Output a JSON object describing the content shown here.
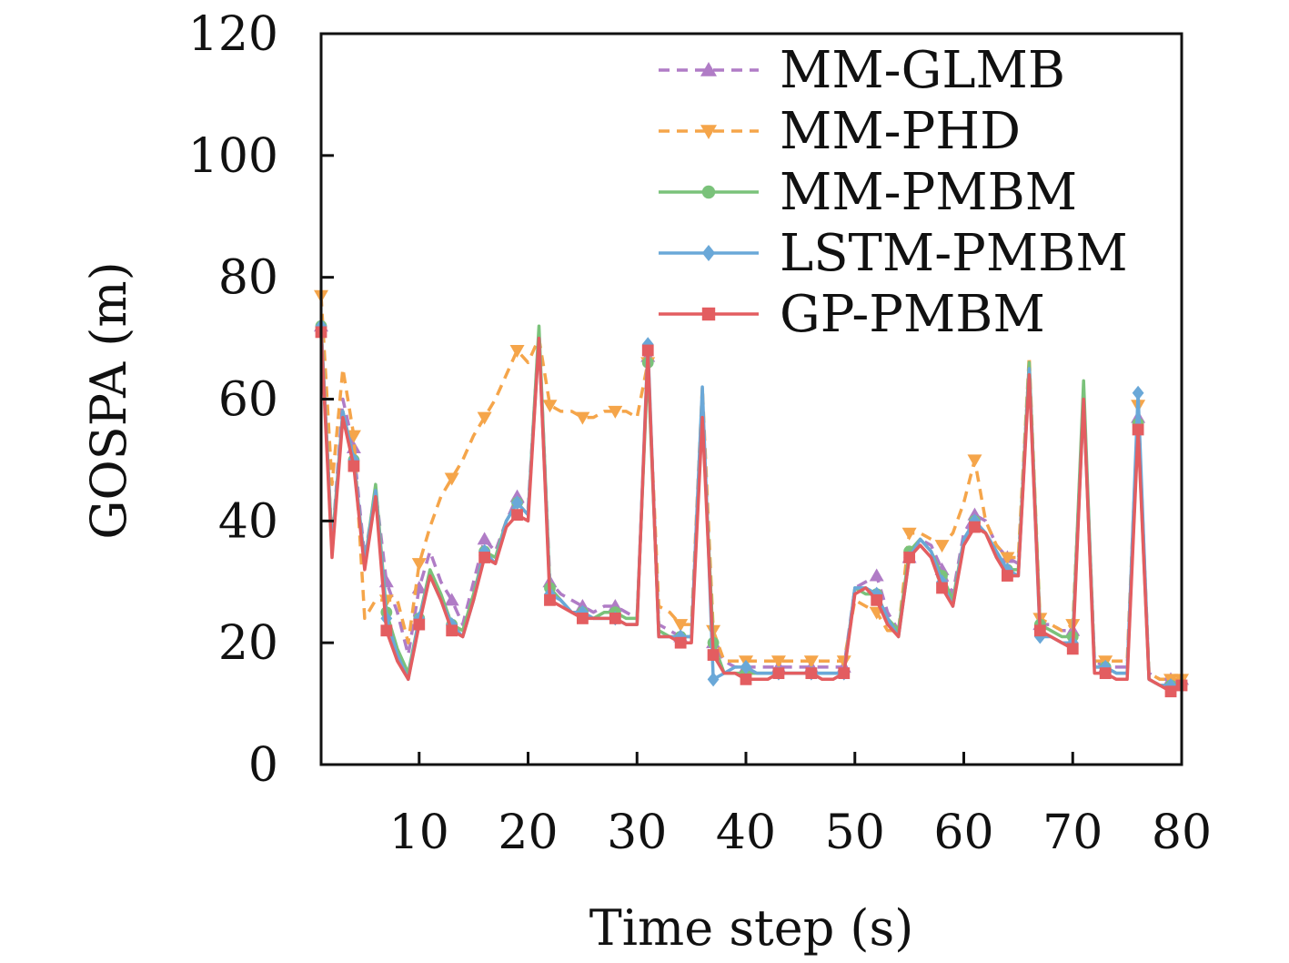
{
  "chart_data": {
    "type": "line",
    "title": "",
    "xlabel": "Time step (s)",
    "ylabel": "GOSPA (m)",
    "xlim": [
      1,
      80
    ],
    "ylim": [
      0,
      120
    ],
    "xticks": [
      10,
      20,
      30,
      40,
      50,
      60,
      70,
      80
    ],
    "yticks": [
      0,
      20,
      40,
      60,
      80,
      100,
      120
    ],
    "grid": false,
    "legend_position": "top-right",
    "x": [
      1,
      2,
      3,
      4,
      5,
      6,
      7,
      8,
      9,
      10,
      11,
      12,
      13,
      14,
      15,
      16,
      17,
      18,
      19,
      20,
      21,
      22,
      23,
      24,
      25,
      26,
      27,
      28,
      29,
      30,
      31,
      32,
      33,
      34,
      35,
      36,
      37,
      38,
      39,
      40,
      41,
      42,
      43,
      44,
      45,
      46,
      47,
      48,
      49,
      50,
      51,
      52,
      53,
      54,
      55,
      56,
      57,
      58,
      59,
      60,
      61,
      62,
      63,
      64,
      65,
      66,
      67,
      68,
      69,
      70,
      71,
      72,
      73,
      74,
      75,
      76,
      77,
      78,
      79,
      80
    ],
    "series": [
      {
        "name": "MM-GLMB",
        "color": "#b07cc6",
        "dash": "dashed",
        "marker": "triangle-up",
        "values": [
          72,
          36,
          60,
          52,
          34,
          45,
          30,
          25,
          18,
          29,
          35,
          30,
          27,
          23,
          30,
          37,
          35,
          40,
          44,
          42,
          71,
          30,
          28,
          27,
          26,
          25,
          26,
          26,
          25,
          24,
          67,
          23,
          22,
          21,
          21,
          60,
          20,
          17,
          16,
          16,
          16,
          16,
          16,
          16,
          16,
          16,
          16,
          16,
          16,
          29,
          30,
          31,
          25,
          22,
          34,
          37,
          36,
          32,
          28,
          38,
          41,
          40,
          36,
          34,
          33,
          66,
          23,
          23,
          22,
          22,
          61,
          17,
          16,
          16,
          16,
          57,
          15,
          14,
          14,
          14
        ]
      },
      {
        "name": "MM-PHD",
        "color": "#f5a54a",
        "dash": "dashed",
        "marker": "triangle-down",
        "values": [
          77,
          46,
          65,
          54,
          24,
          27,
          27,
          27,
          20,
          33,
          39,
          44,
          47,
          50,
          54,
          57,
          60,
          64,
          68,
          66,
          70,
          59,
          58,
          58,
          57,
          57,
          58,
          58,
          58,
          57,
          66,
          26,
          25,
          23,
          23,
          62,
          22,
          17,
          17,
          17,
          17,
          17,
          17,
          17,
          17,
          17,
          17,
          17,
          17,
          27,
          26,
          25,
          22,
          22,
          38,
          38,
          37,
          36,
          38,
          43,
          50,
          40,
          36,
          34,
          34,
          67,
          24,
          23,
          22,
          23,
          60,
          17,
          17,
          17,
          17,
          59,
          15,
          14,
          14,
          14
        ]
      },
      {
        "name": "MM-PMBM",
        "color": "#7ac27a",
        "dash": "solid",
        "marker": "circle",
        "values": [
          72,
          36,
          58,
          50,
          33,
          46,
          25,
          19,
          15,
          24,
          32,
          28,
          23,
          22,
          28,
          35,
          34,
          40,
          43,
          41,
          72,
          29,
          27,
          25,
          25,
          24,
          25,
          25,
          24,
          24,
          66,
          22,
          21,
          21,
          21,
          58,
          20,
          15,
          15,
          15,
          15,
          15,
          15,
          15,
          15,
          15,
          15,
          15,
          15,
          29,
          28,
          28,
          24,
          22,
          35,
          37,
          35,
          31,
          27,
          37,
          40,
          38,
          35,
          32,
          32,
          66,
          23,
          22,
          21,
          21,
          63,
          16,
          16,
          15,
          15,
          56,
          14,
          13,
          13,
          13
        ]
      },
      {
        "name": "LSTM-PMBM",
        "color": "#6aa8d8",
        "dash": "solid",
        "marker": "diamond",
        "values": [
          72,
          35,
          58,
          50,
          33,
          45,
          24,
          18,
          14,
          24,
          31,
          27,
          23,
          21,
          27,
          35,
          33,
          40,
          43,
          41,
          70,
          28,
          27,
          25,
          25,
          24,
          24,
          24,
          23,
          23,
          69,
          21,
          21,
          21,
          21,
          62,
          14,
          15,
          16,
          16,
          15,
          15,
          15,
          15,
          15,
          15,
          15,
          15,
          15,
          29,
          29,
          28,
          24,
          21,
          34,
          37,
          35,
          30,
          26,
          37,
          40,
          38,
          35,
          32,
          31,
          65,
          21,
          21,
          20,
          20,
          60,
          16,
          16,
          15,
          15,
          61,
          14,
          13,
          13,
          13
        ]
      },
      {
        "name": "GP-PMBM",
        "color": "#e35d60",
        "dash": "solid",
        "marker": "square",
        "values": [
          71,
          34,
          57,
          49,
          32,
          44,
          22,
          17,
          14,
          23,
          31,
          27,
          22,
          21,
          27,
          34,
          33,
          39,
          41,
          40,
          70,
          27,
          26,
          25,
          24,
          24,
          24,
          24,
          23,
          23,
          68,
          21,
          21,
          20,
          20,
          57,
          18,
          15,
          15,
          14,
          14,
          14,
          15,
          15,
          15,
          15,
          14,
          14,
          15,
          28,
          29,
          27,
          23,
          21,
          34,
          36,
          34,
          29,
          26,
          36,
          39,
          38,
          34,
          31,
          31,
          64,
          22,
          21,
          20,
          19,
          60,
          15,
          15,
          14,
          14,
          55,
          14,
          13,
          12,
          13
        ]
      }
    ]
  }
}
